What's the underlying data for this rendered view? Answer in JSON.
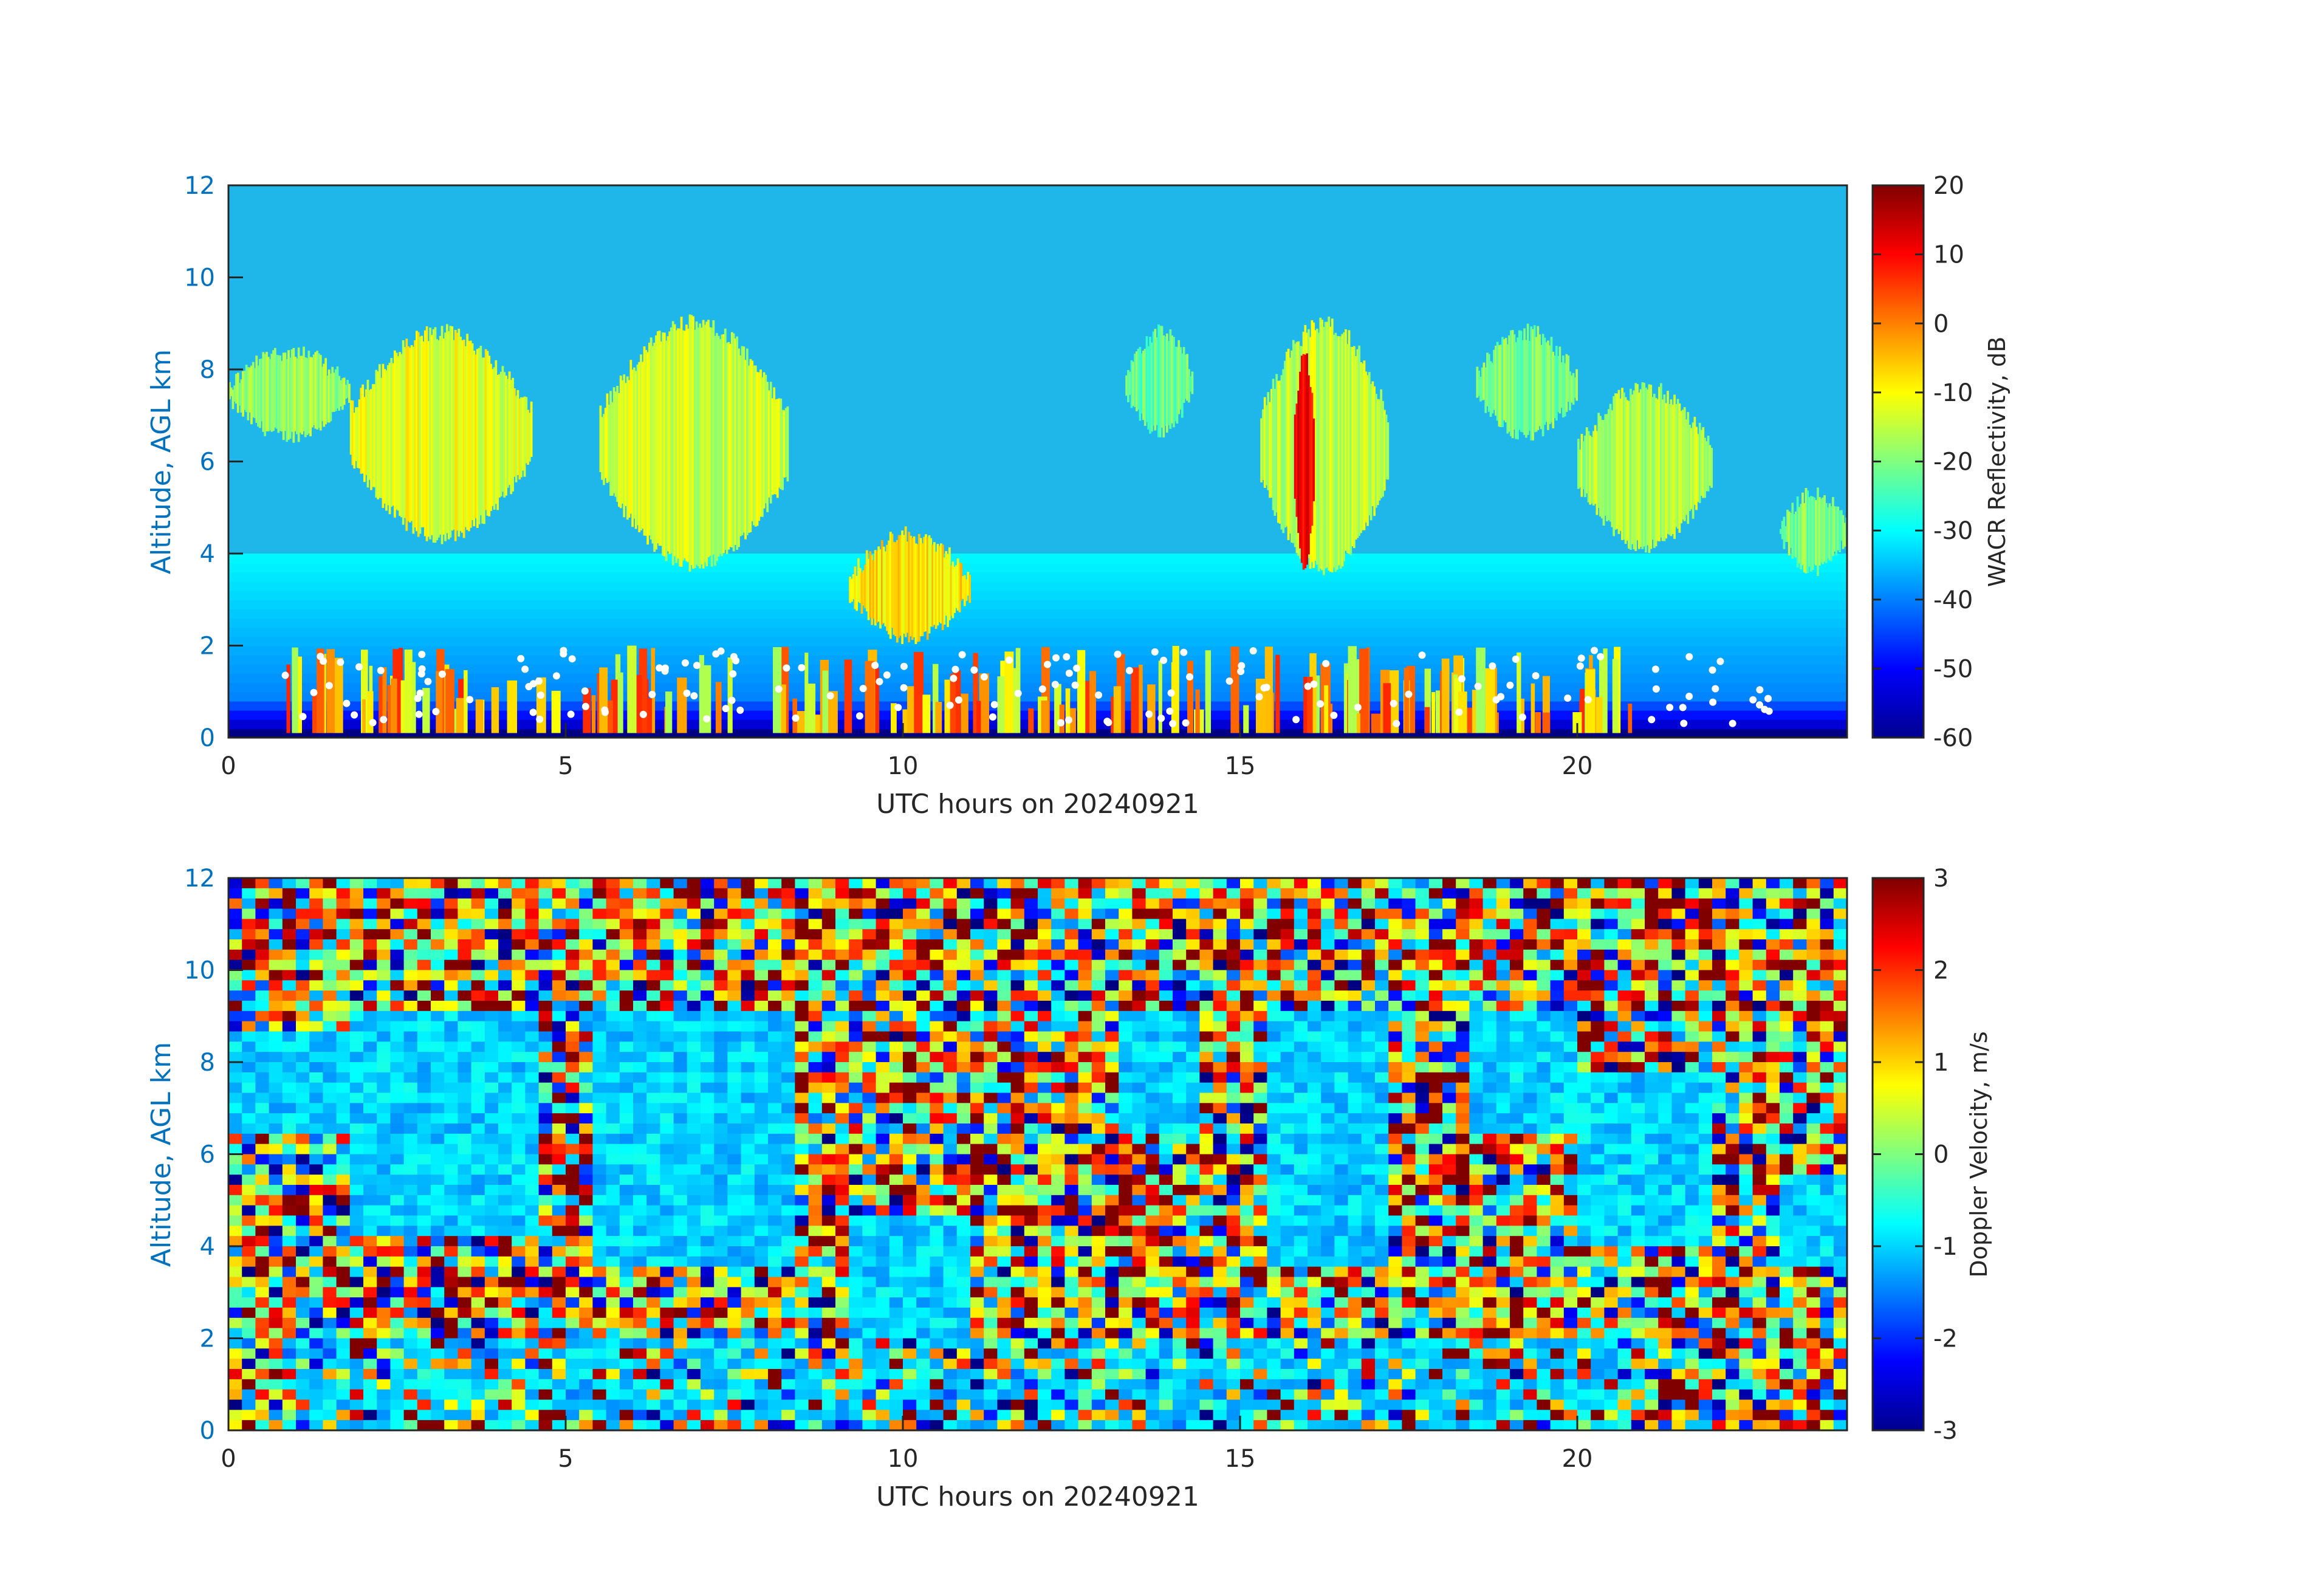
{
  "chart_data": [
    {
      "type": "heatmap",
      "title": "",
      "xlabel": "UTC hours on 20240921",
      "ylabel": "Altitude, AGL km",
      "xlim": [
        0,
        24
      ],
      "ylim": [
        0,
        12
      ],
      "xticks": [
        0,
        5,
        10,
        15,
        20
      ],
      "yticks": [
        0,
        2,
        4,
        6,
        8,
        10,
        12
      ],
      "grid": false,
      "colormap": "jet",
      "colorbar": {
        "label": "WACR Reflectivity, dB",
        "range": [
          -60,
          20
        ],
        "ticks": [
          -60,
          -50,
          -40,
          -30,
          -20,
          -10,
          0,
          10,
          20
        ]
      },
      "background_value_dB": -30,
      "near_surface_value_dB": -60,
      "cloud_layers": [
        {
          "x": [
            0,
            1.8
          ],
          "y": [
            6.4,
            8.6
          ],
          "value_dB": -18
        },
        {
          "x": [
            1.8,
            4.5
          ],
          "y": [
            4.2,
            9.0
          ],
          "value_dB": -12
        },
        {
          "x": [
            5.5,
            8.3
          ],
          "y": [
            3.6,
            9.2
          ],
          "value_dB": -14
        },
        {
          "x": [
            9.2,
            11.0
          ],
          "y": [
            2.0,
            4.6
          ],
          "value_dB": -8
        },
        {
          "x": [
            13.3,
            14.3
          ],
          "y": [
            6.5,
            9.0
          ],
          "value_dB": -22
        },
        {
          "x": [
            15.3,
            17.2
          ],
          "y": [
            3.5,
            9.2
          ],
          "value_dB": -15
        },
        {
          "x": [
            15.8,
            16.1
          ],
          "y": [
            3.5,
            8.6
          ],
          "value_dB": 10
        },
        {
          "x": [
            18.5,
            20.0
          ],
          "y": [
            6.4,
            9.0
          ],
          "value_dB": -20
        },
        {
          "x": [
            20.0,
            22.0
          ],
          "y": [
            4.0,
            7.8
          ],
          "value_dB": -16
        },
        {
          "x": [
            23.0,
            24.0
          ],
          "y": [
            3.5,
            5.5
          ],
          "value_dB": -20
        }
      ],
      "low_cloud_layer": {
        "x": [
          0.8,
          21.0
        ],
        "y": [
          0.1,
          2.0
        ],
        "value_dB": -10
      }
    },
    {
      "type": "heatmap",
      "title": "",
      "xlabel": "UTC hours on 20240921",
      "ylabel": "Altitude, AGL km",
      "xlim": [
        0,
        24
      ],
      "ylim": [
        0,
        12
      ],
      "xticks": [
        0,
        5,
        10,
        15,
        20
      ],
      "yticks": [
        0,
        2,
        4,
        6,
        8,
        10,
        12
      ],
      "grid": false,
      "colormap": "jet",
      "colorbar": {
        "label": "Doppler Velocity, m/s",
        "range": [
          -3,
          3
        ],
        "ticks": [
          -3,
          -2,
          -1,
          0,
          1,
          2,
          3
        ]
      },
      "background": "random noise",
      "cloud_regions_velocity_ms": -1
    }
  ]
}
